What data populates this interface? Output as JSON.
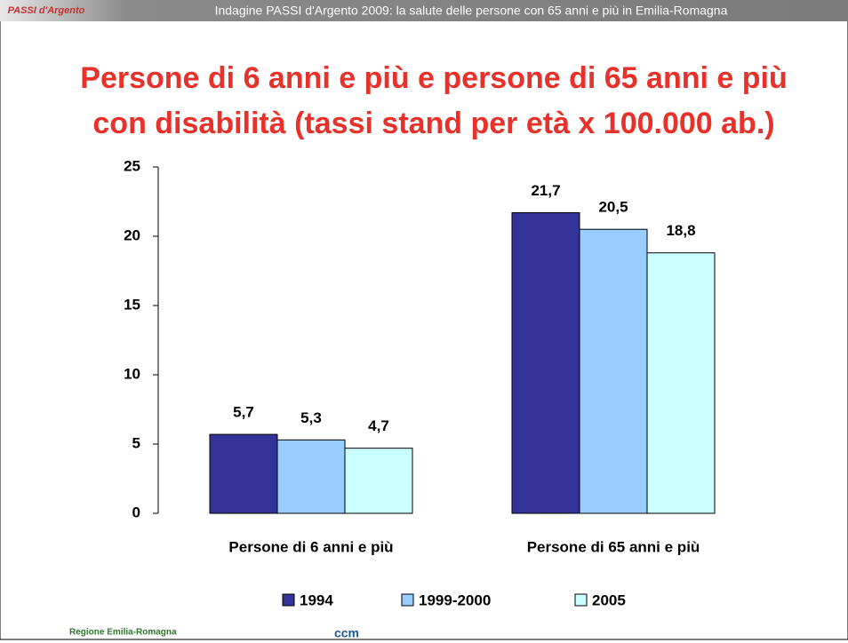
{
  "header": {
    "logo": "PASSI d'Argento",
    "text": "Indagine PASSI d'Argento 2009: la salute delle persone con 65 anni e più in Emilia-Romagna"
  },
  "chart_data": {
    "type": "bar",
    "title": "Persone di 6 anni e più e persone di 65 anni e più",
    "subtitle": "con disabilità (tassi stand per età x 100.000 ab.)",
    "categories": [
      "Persone di 6 anni e più",
      "Persone di 65 anni e più"
    ],
    "series": [
      {
        "name": "1994",
        "color": "#333399",
        "values": [
          5.7,
          21.7
        ],
        "value_labels": [
          "5,7",
          "21,7"
        ]
      },
      {
        "name": "1999-2000",
        "color": "#99ccff",
        "values": [
          5.3,
          20.5
        ],
        "value_labels": [
          "5,3",
          "20,5"
        ]
      },
      {
        "name": "2005",
        "color": "#ccffff",
        "values": [
          4.7,
          18.8
        ],
        "value_labels": [
          "4,7",
          "18,8"
        ]
      }
    ],
    "ylim": [
      0,
      25
    ],
    "yticks": [
      0,
      5,
      10,
      15,
      20,
      25
    ],
    "grid": false,
    "legend": "bottom"
  },
  "footer": {
    "left": "Regione Emilia-Romagna",
    "center": "ccm"
  }
}
